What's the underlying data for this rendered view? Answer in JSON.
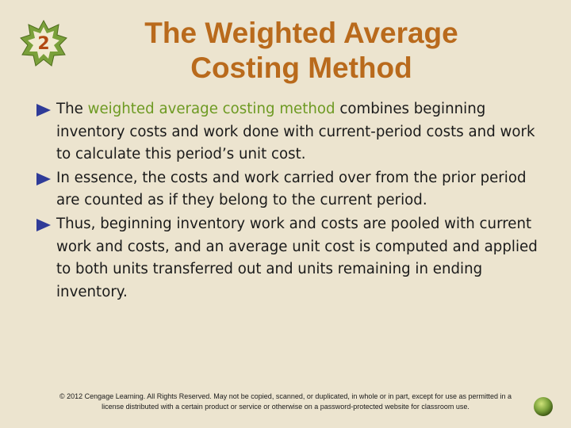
{
  "slide": {
    "number": "2",
    "title_line1": "The Weighted Average",
    "title_line2": "Costing Method"
  },
  "bullets": [
    {
      "pre": "The ",
      "highlight": "weighted average costing method",
      "post": " combines beginning inventory costs and work done with current-period costs and work to calculate this period’s unit cost."
    },
    {
      "pre": "In essence, the costs and work carried over from the prior period are counted as if they belong to the current period.",
      "highlight": "",
      "post": ""
    },
    {
      "pre": "Thus, beginning inventory work and costs are pooled with current work and costs, and an average unit  cost is computed and applied to both units transferred out and units remaining in ending inventory.",
      "highlight": "",
      "post": ""
    }
  ],
  "footer": {
    "copyright_line1": "© 2012 Cengage Learning. All Rights Reserved. May not be copied, scanned, or duplicated, in whole or in part, except for use as permitted in a",
    "copyright_line2": "license distributed with a certain product or service or otherwise on a password-protected website for classroom use."
  },
  "colors": {
    "background": "#ece4cf",
    "title": "#b96a1c",
    "highlight": "#6d9a22",
    "bullet_arrow": "#2f3b98",
    "badge_fill": "#7aa03a"
  },
  "icons": {
    "slide_badge": "starburst-badge-icon",
    "bullet": "triangle-bullet-icon",
    "corner": "green-ball-icon"
  }
}
